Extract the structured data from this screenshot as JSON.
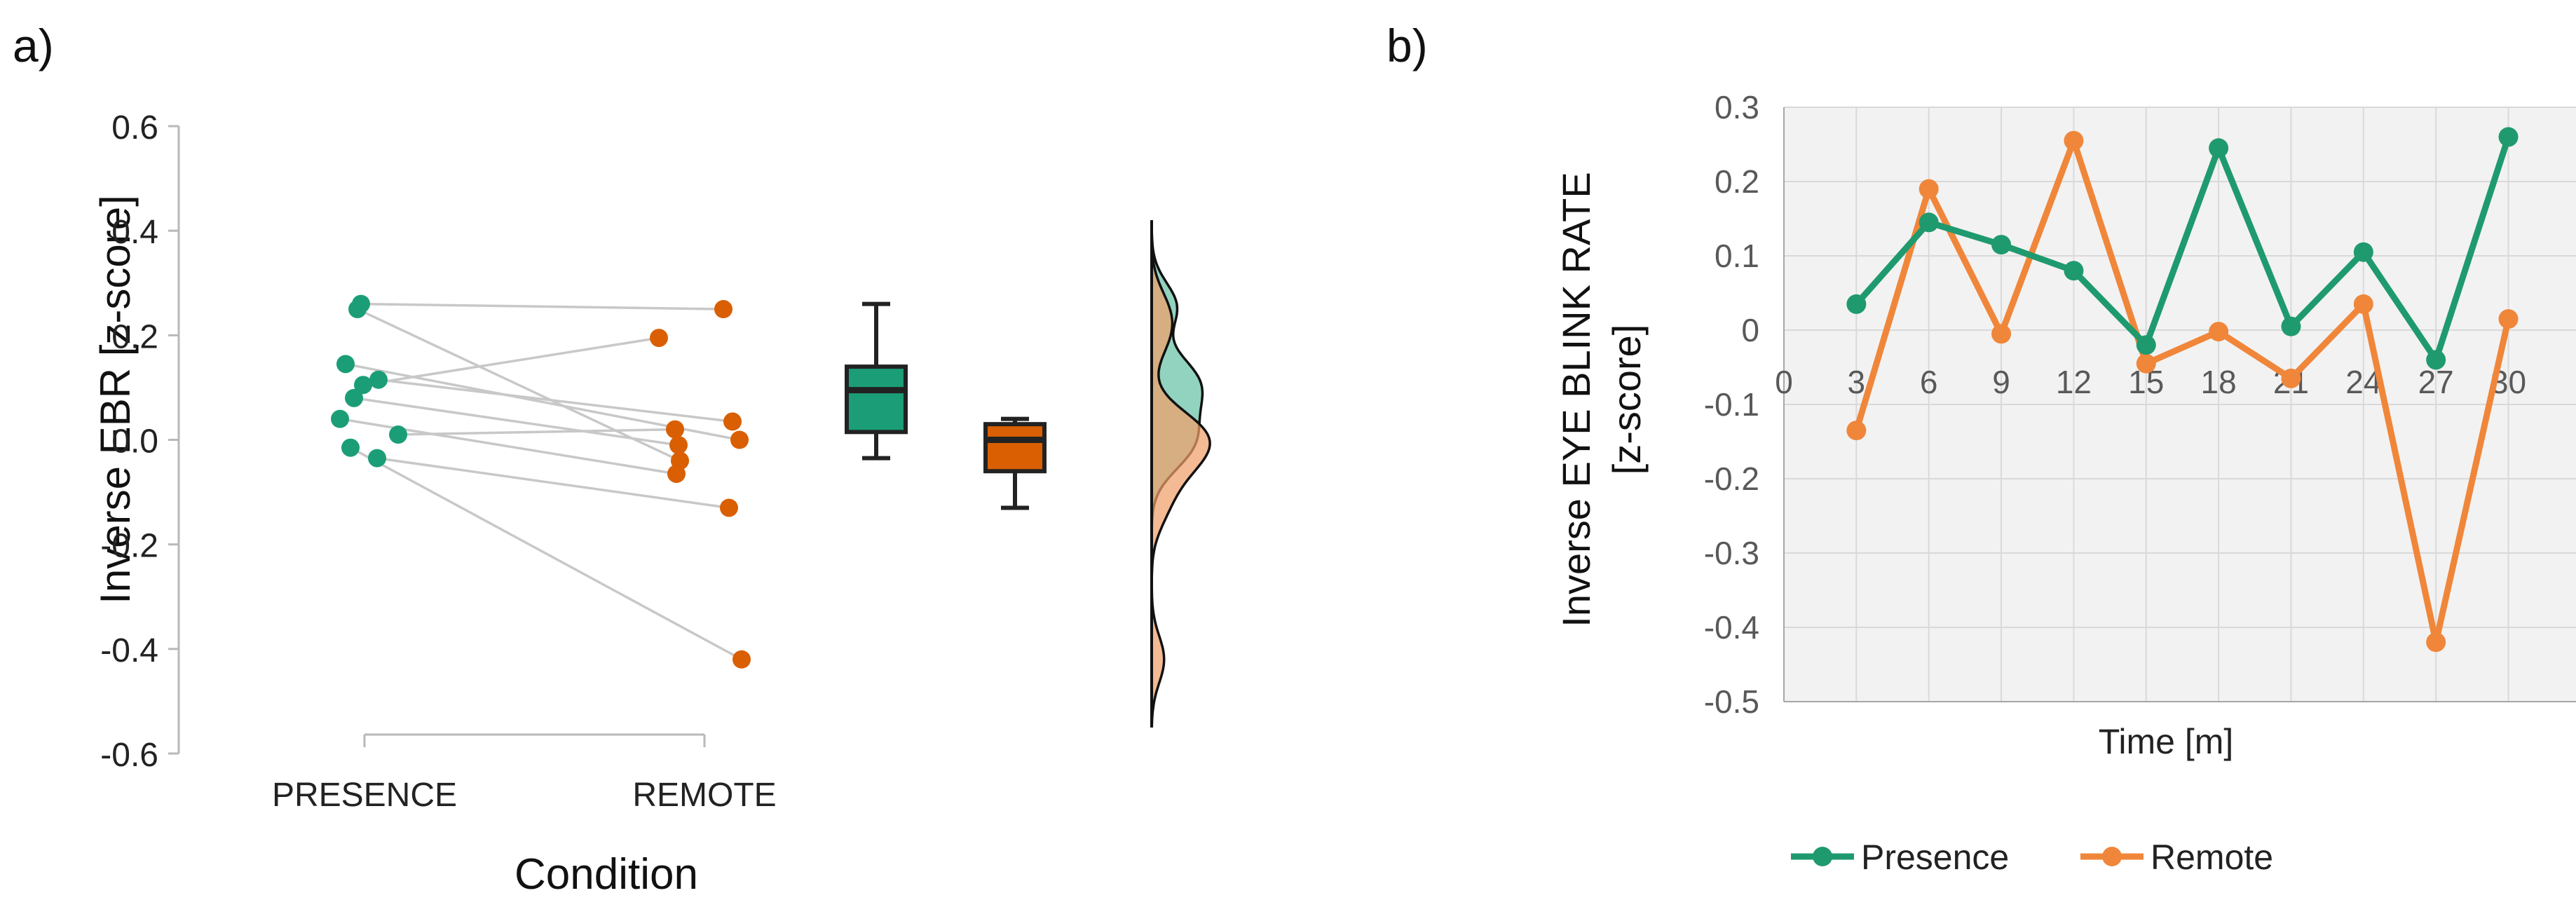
{
  "panel_labels": [
    "a)",
    "b)"
  ],
  "colors": {
    "presence": "#1b9e77",
    "remote": "#d95f02",
    "presence_line": "#1f9a6e",
    "remote_line": "#f0863a",
    "pair_line": "#c8c8c8",
    "plot_bg": "#f2f2f2"
  },
  "chart_data": [
    {
      "type": "scatter",
      "variant": "raincloud paired points + boxplots + density",
      "xlabel": "Condition",
      "ylabel": "Inverse EBR [z-score]",
      "categories": [
        "PRESENCE",
        "REMOTE"
      ],
      "ylim": [
        -0.6,
        0.6
      ],
      "yticks": [
        "0.6",
        "0.4",
        "0.2",
        "0.0",
        "-0.2",
        "-0.4",
        "-0.6"
      ],
      "grid": false,
      "pairs": [
        {
          "presence": 0.26,
          "remote": 0.25
        },
        {
          "presence": 0.25,
          "remote": -0.04
        },
        {
          "presence": 0.145,
          "remote": 0.0
        },
        {
          "presence": 0.115,
          "remote": 0.035
        },
        {
          "presence": 0.105,
          "remote": 0.195
        },
        {
          "presence": 0.08,
          "remote": -0.01
        },
        {
          "presence": 0.04,
          "remote": -0.065
        },
        {
          "presence": 0.01,
          "remote": 0.02
        },
        {
          "presence": -0.015,
          "remote": -0.42
        },
        {
          "presence": -0.035,
          "remote": -0.13
        }
      ],
      "boxplots": [
        {
          "name": "Presence",
          "whisker_low": -0.035,
          "q1": 0.015,
          "median": 0.095,
          "q3": 0.14,
          "whisker_high": 0.26
        },
        {
          "name": "Remote",
          "whisker_low": -0.13,
          "q1": -0.06,
          "median": 0.0,
          "q3": 0.03,
          "whisker_high": 0.04
        }
      ],
      "density_range": [
        -0.55,
        0.42
      ]
    },
    {
      "type": "line",
      "xlabel": "Time [m]",
      "ylabel_line1": "Inverse  EYE BLINK RATE",
      "ylabel_line2": "[z-score]",
      "x": [
        3,
        6,
        9,
        12,
        15,
        18,
        21,
        24,
        27,
        30
      ],
      "xticks": [
        "0",
        "3",
        "6",
        "9",
        "12",
        "15",
        "18",
        "21",
        "24",
        "27",
        "30"
      ],
      "ylim": [
        -0.5,
        0.3
      ],
      "yticks": [
        "0.3",
        "0.2",
        "0.1",
        "0",
        "-0.1",
        "-0.2",
        "-0.3",
        "-0.4",
        "-0.5"
      ],
      "grid": true,
      "legend_position": "bottom",
      "series": [
        {
          "name": "Presence",
          "values": [
            0.035,
            0.145,
            0.115,
            0.08,
            -0.02,
            0.245,
            0.005,
            0.105,
            -0.04,
            0.26
          ]
        },
        {
          "name": "Remote",
          "values": [
            -0.135,
            0.19,
            -0.005,
            0.255,
            -0.045,
            -0.002,
            -0.065,
            0.035,
            -0.42,
            0.015
          ]
        }
      ]
    }
  ]
}
